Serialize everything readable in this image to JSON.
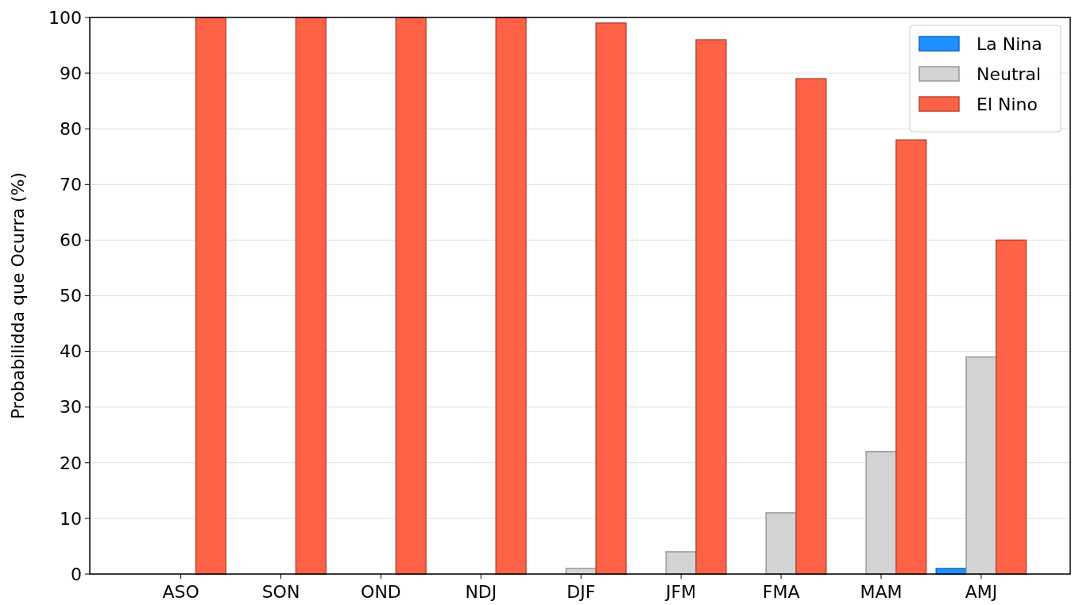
{
  "chart_data": {
    "type": "bar",
    "ylabel": "Probabilidda que Ocurra (%)",
    "categories": [
      "ASO",
      "SON",
      "OND",
      "NDJ",
      "DJF",
      "JFM",
      "FMA",
      "MAM",
      "AMJ"
    ],
    "series": [
      {
        "name": "La Nina",
        "color": "#1e90ff",
        "values": [
          0,
          0,
          0,
          0,
          0,
          0,
          0,
          0,
          1
        ]
      },
      {
        "name": "Neutral",
        "color": "#d3d3d3",
        "values": [
          0,
          0,
          0,
          0,
          1,
          4,
          11,
          22,
          39
        ]
      },
      {
        "name": "El Nino",
        "color": "#ff6347",
        "values": [
          100,
          100,
          100,
          100,
          99,
          96,
          89,
          78,
          60
        ]
      }
    ],
    "ylim": [
      0,
      100
    ],
    "yticks": [
      0,
      10,
      20,
      30,
      40,
      50,
      60,
      70,
      80,
      90,
      100
    ],
    "grid": "y",
    "legend": "top right"
  }
}
